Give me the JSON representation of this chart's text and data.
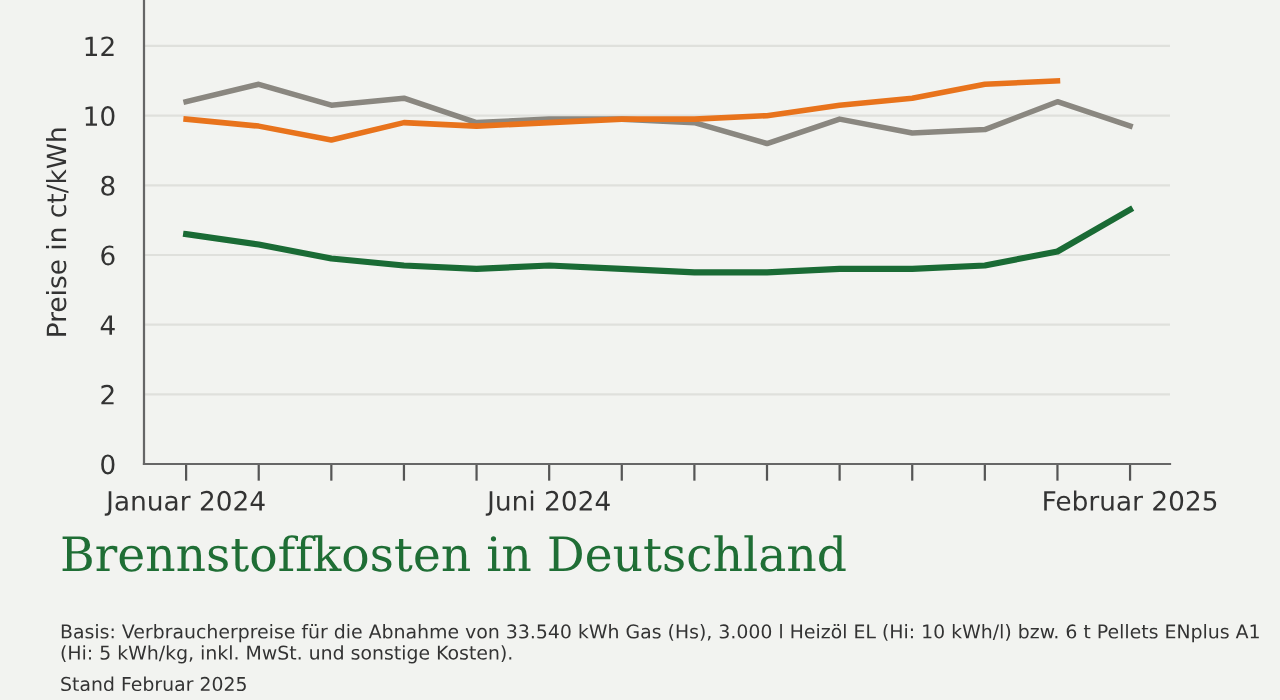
{
  "chart_data": {
    "type": "line",
    "title": "Brennstoffkosten in Deutschland",
    "ylabel": "Preise in ct/kWh",
    "categories": [
      "Januar 2024",
      null,
      null,
      null,
      null,
      "Juni 2024",
      null,
      null,
      null,
      null,
      null,
      null,
      null,
      "Februar 2025"
    ],
    "series": [
      {
        "color": "#8a8780",
        "values": [
          10.4,
          10.9,
          10.3,
          10.5,
          9.8,
          9.9,
          9.9,
          9.8,
          9.2,
          9.9,
          9.5,
          9.6,
          10.4,
          9.7
        ]
      },
      {
        "color": "#e8731c",
        "values": [
          9.9,
          9.7,
          9.3,
          9.8,
          9.7,
          9.8,
          9.9,
          9.9,
          10.0,
          10.3,
          10.5,
          10.9,
          11.0,
          null
        ]
      },
      {
        "color": "#1a6b35",
        "values": [
          6.6,
          6.3,
          5.9,
          5.7,
          5.6,
          5.7,
          5.6,
          5.5,
          5.5,
          5.6,
          5.6,
          5.7,
          6.1,
          7.3
        ]
      }
    ],
    "ylim": [
      0,
      13.3
    ],
    "yticks": [
      0,
      2,
      4,
      6,
      8,
      10,
      12
    ],
    "grid": "y",
    "legend": false,
    "marker": "none",
    "line_style": "solid",
    "annotations": [
      "Basis: Verbraucherpreise für die Abnahme von 33.540 kWh Gas (Hs), 3.000 l Heizöl EL (Hi: 10 kWh/l) bzw. 6 t Pellets ENplus A1 (Hi: 5 kWh/kg, inkl. MwSt. und sonstige Kosten).",
      "Stand Februar 2025"
    ]
  }
}
